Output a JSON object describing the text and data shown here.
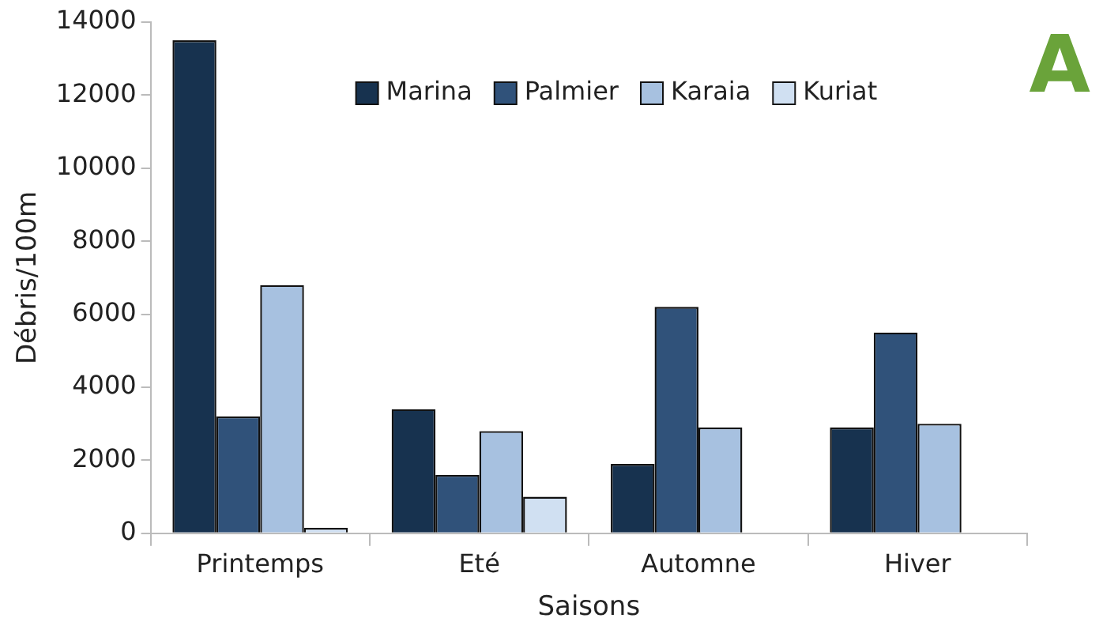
{
  "chart_data": {
    "type": "bar",
    "xlabel": "Saisons",
    "ylabel": "Débris/100m",
    "annotations": [
      "A"
    ],
    "categories": [
      "Printemps",
      "Eté",
      "Automne",
      "Hiver"
    ],
    "series": [
      {
        "name": "Marina",
        "color": "#17324f",
        "values": [
          13500,
          3400,
          1900,
          2900
        ]
      },
      {
        "name": "Palmier",
        "color": "#30527a",
        "values": [
          3200,
          1600,
          6200,
          5500
        ]
      },
      {
        "name": "Karaia",
        "color": "#a7c1e0",
        "values": [
          6800,
          2800,
          2900,
          3000
        ]
      },
      {
        "name": "Kuriat",
        "color": "#d0e0f2",
        "values": [
          150,
          1000,
          null,
          null
        ]
      }
    ],
    "ylim": [
      0,
      14000
    ],
    "yticks": [
      0,
      2000,
      4000,
      6000,
      8000,
      10000,
      12000,
      14000
    ],
    "grid": false,
    "legend": "top right"
  }
}
